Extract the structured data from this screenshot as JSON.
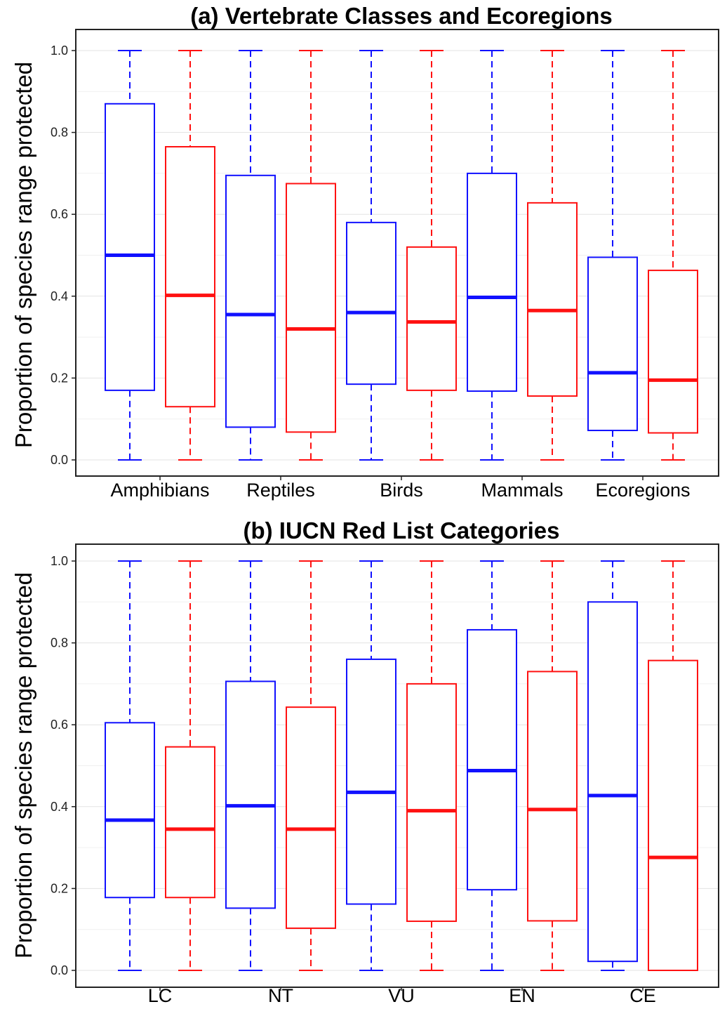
{
  "colors": {
    "series_1": "#1111ff",
    "series_2": "#ff1111"
  },
  "chart_data": [
    {
      "type": "box",
      "title": "(a) Vertebrate Classes and Ecoregions",
      "xlabel": "",
      "ylabel": "Proportion of species range protected",
      "ylim": [
        0,
        1
      ],
      "yticks": [
        "0.0",
        "0.2",
        "0.4",
        "0.6",
        "0.8",
        "1.0"
      ],
      "grid": true,
      "categories": [
        "Amphibians",
        "Reptiles",
        "Birds",
        "Mammals",
        "Ecoregions"
      ],
      "series": [
        {
          "color": "#1111ff",
          "boxes": [
            {
              "min": 0.0,
              "q1": 0.17,
              "median": 0.5,
              "q3": 0.87,
              "max": 1.0
            },
            {
              "min": 0.0,
              "q1": 0.08,
              "median": 0.355,
              "q3": 0.695,
              "max": 1.0
            },
            {
              "min": 0.0,
              "q1": 0.185,
              "median": 0.36,
              "q3": 0.58,
              "max": 1.0
            },
            {
              "min": 0.0,
              "q1": 0.168,
              "median": 0.397,
              "q3": 0.7,
              "max": 1.0
            },
            {
              "min": 0.0,
              "q1": 0.072,
              "median": 0.213,
              "q3": 0.495,
              "max": 1.0
            }
          ]
        },
        {
          "color": "#ff1111",
          "boxes": [
            {
              "min": 0.0,
              "q1": 0.13,
              "median": 0.402,
              "q3": 0.765,
              "max": 1.0
            },
            {
              "min": 0.0,
              "q1": 0.068,
              "median": 0.32,
              "q3": 0.675,
              "max": 1.0
            },
            {
              "min": 0.0,
              "q1": 0.17,
              "median": 0.337,
              "q3": 0.52,
              "max": 1.0
            },
            {
              "min": 0.0,
              "q1": 0.156,
              "median": 0.365,
              "q3": 0.628,
              "max": 1.0
            },
            {
              "min": 0.0,
              "q1": 0.066,
              "median": 0.195,
              "q3": 0.463,
              "max": 1.0
            }
          ]
        }
      ]
    },
    {
      "type": "box",
      "title": "(b) IUCN Red List Categories",
      "xlabel": "",
      "ylabel": "Proportion of species range protected",
      "ylim": [
        0,
        1
      ],
      "yticks": [
        "0.0",
        "0.2",
        "0.4",
        "0.6",
        "0.8",
        "1.0"
      ],
      "grid": true,
      "categories": [
        "LC",
        "NT",
        "VU",
        "EN",
        "CE"
      ],
      "series": [
        {
          "color": "#1111ff",
          "boxes": [
            {
              "min": 0.0,
              "q1": 0.178,
              "median": 0.367,
              "q3": 0.605,
              "max": 1.0
            },
            {
              "min": 0.0,
              "q1": 0.152,
              "median": 0.402,
              "q3": 0.706,
              "max": 1.0
            },
            {
              "min": 0.0,
              "q1": 0.162,
              "median": 0.435,
              "q3": 0.76,
              "max": 1.0
            },
            {
              "min": 0.0,
              "q1": 0.197,
              "median": 0.488,
              "q3": 0.832,
              "max": 1.0
            },
            {
              "min": 0.0,
              "q1": 0.022,
              "median": 0.427,
              "q3": 0.9,
              "max": 1.0
            }
          ]
        },
        {
          "color": "#ff1111",
          "boxes": [
            {
              "min": 0.0,
              "q1": 0.178,
              "median": 0.345,
              "q3": 0.546,
              "max": 1.0
            },
            {
              "min": 0.0,
              "q1": 0.103,
              "median": 0.345,
              "q3": 0.643,
              "max": 1.0
            },
            {
              "min": 0.0,
              "q1": 0.12,
              "median": 0.39,
              "q3": 0.7,
              "max": 1.0
            },
            {
              "min": 0.0,
              "q1": 0.121,
              "median": 0.393,
              "q3": 0.73,
              "max": 1.0
            },
            {
              "min": 0.0,
              "q1": 0.0,
              "median": 0.276,
              "q3": 0.757,
              "max": 1.0
            }
          ]
        }
      ]
    }
  ]
}
